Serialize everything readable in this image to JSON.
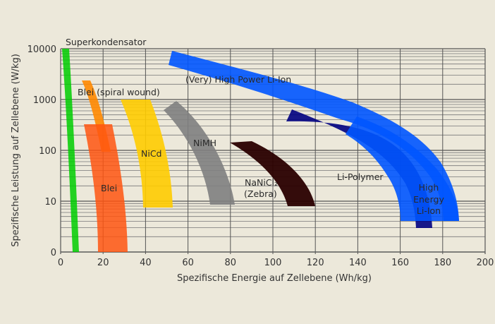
{
  "chart_data": {
    "type": "area",
    "title": "",
    "xlabel": "Spezifische Energie auf Zellebene (Wh/kg)",
    "ylabel": "Spezifische Leistung auf Zellebene (W/kg)",
    "xlim": [
      0,
      200
    ],
    "ylim": [
      1,
      10000
    ],
    "yscale": "log",
    "grid": true,
    "x_ticks": [
      "0",
      "20",
      "40",
      "60",
      "80",
      "100",
      "120",
      "140",
      "160",
      "180",
      "200"
    ],
    "y_ticks": [
      "0",
      "10",
      "100",
      "1000",
      "10000"
    ],
    "series": [
      {
        "name": "Superkondensator",
        "label": "Superkondensator",
        "color": "#00cc00",
        "energy_range": [
          1,
          8
        ],
        "power_range": [
          1,
          10000
        ]
      },
      {
        "name": "Blei (spiral wound)",
        "label": "Blei (spiral wound)",
        "color": "#ff8800",
        "energy_range": [
          10,
          24
        ],
        "power_range": [
          80,
          2200
        ]
      },
      {
        "name": "Blei",
        "label": "Blei",
        "color": "#ff5511",
        "energy_range": [
          17,
          31
        ],
        "power_range": [
          1,
          320
        ]
      },
      {
        "name": "NiCd",
        "label": "NiCd",
        "color": "#ffcc00",
        "energy_range": [
          28,
          53
        ],
        "power_range": [
          9,
          1000
        ]
      },
      {
        "name": "NiMH",
        "label": "NiMH",
        "color": "#808080",
        "energy_range": [
          49,
          81
        ],
        "power_range": [
          9,
          900
        ]
      },
      {
        "name": "NaNiCl2 (Zebra)",
        "label": "NaNiCl₂",
        "label2": "(Zebra)",
        "color": "#2a0000",
        "energy_range": [
          80,
          120
        ],
        "power_range": [
          8,
          150
        ]
      },
      {
        "name": "Li-Polymer",
        "label": "Li-Polymer",
        "color": "#000080",
        "energy_range": [
          107,
          175
        ],
        "power_range": [
          3,
          650
        ]
      },
      {
        "name": "(Very) High Power Li-Ion",
        "label": "(Very) High Power Li-Ion",
        "color": "#0055ff",
        "energy_range": [
          51,
          160
        ],
        "power_range": [
          600,
          8000
        ]
      },
      {
        "name": "High Energy Li-Ion",
        "label": "High",
        "label2": "Energy",
        "label3": "Li-Ion",
        "color": "#0055ff",
        "energy_range": [
          160,
          188
        ],
        "power_range": [
          4,
          600
        ]
      }
    ]
  }
}
